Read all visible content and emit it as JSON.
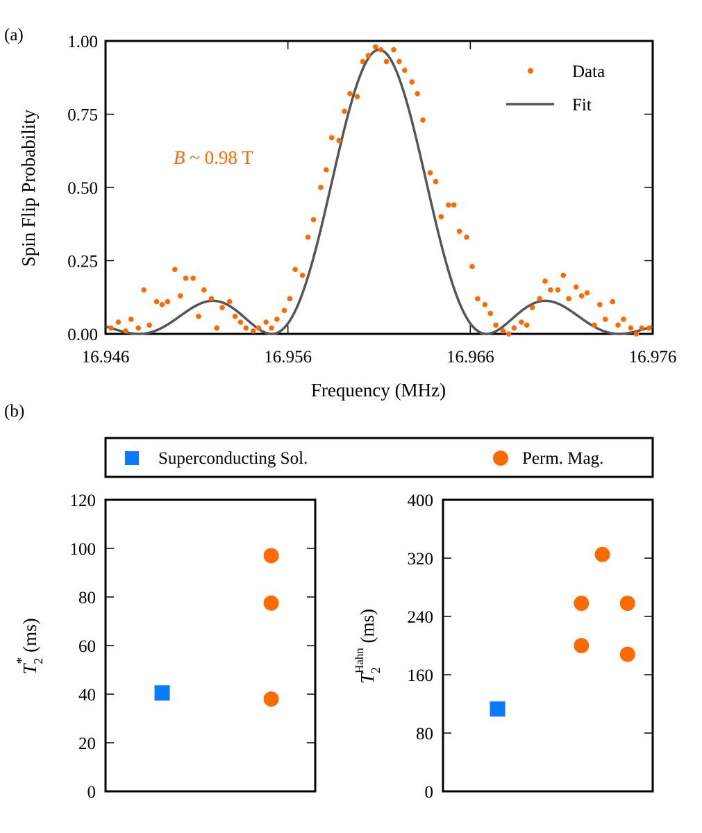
{
  "panels": {
    "a": "(a)",
    "b": "(b)"
  },
  "colors": {
    "data": "#FF6A00",
    "fit": "#555555",
    "solenoid": "#0A7BFF",
    "magnet": "#FF6A00",
    "axis": "#000000"
  },
  "chart_data": [
    {
      "type": "scatter+line",
      "panel": "(a)",
      "title": "",
      "xlabel": "Frequency (MHz)",
      "ylabel": "Spin Flip Probability",
      "xlim": [
        16.946,
        16.976
      ],
      "ylim": [
        0.0,
        1.0
      ],
      "xticks": [
        16.946,
        16.956,
        16.966,
        16.976
      ],
      "xtick_labels": [
        "16.946",
        "16.956",
        "16.966",
        "16.976"
      ],
      "yticks": [
        0.0,
        0.25,
        0.5,
        0.75,
        1.0
      ],
      "ytick_labels": [
        "0.00",
        "0.25",
        "0.50",
        "0.75",
        "1.00"
      ],
      "annotation": {
        "italic": "B",
        "rest": " ~ 0.98 T"
      },
      "legend": {
        "data": "Data",
        "fit": "Fit"
      },
      "fit": {
        "center": 16.961,
        "amplitude": 0.97,
        "rabi_f": 0.0034
      },
      "series": [
        {
          "name": "Data",
          "kind": "points",
          "x": [
            16.9463,
            16.9467,
            16.9471,
            16.9474,
            16.9478,
            16.9481,
            16.9484,
            16.9488,
            16.9491,
            16.9494,
            16.9498,
            16.9501,
            16.9504,
            16.9508,
            16.9511,
            16.9514,
            16.9518,
            16.9521,
            16.9524,
            16.9528,
            16.9531,
            16.9534,
            16.9537,
            16.9541,
            16.9544,
            16.9548,
            16.9551,
            16.9554,
            16.9558,
            16.9561,
            16.9564,
            16.9568,
            16.9571,
            16.9574,
            16.9578,
            16.9581,
            16.9584,
            16.9588,
            16.9591,
            16.9594,
            16.9598,
            16.9601,
            16.9604,
            16.9608,
            16.9611,
            16.9614,
            16.9618,
            16.9621,
            16.9624,
            16.9628,
            16.9631,
            16.9634,
            16.9638,
            16.9641,
            16.9644,
            16.9648,
            16.9651,
            16.9654,
            16.9658,
            16.9661,
            16.9664,
            16.9668,
            16.9671,
            16.9674,
            16.9678,
            16.9681,
            16.9684,
            16.9688,
            16.9691,
            16.9694,
            16.9698,
            16.9701,
            16.9704,
            16.9708,
            16.9711,
            16.9714,
            16.9718,
            16.9721,
            16.9724,
            16.9728,
            16.9731,
            16.9734,
            16.9738,
            16.9741,
            16.9744,
            16.9748,
            16.9751,
            16.9754,
            16.9758
          ],
          "y": [
            0.02,
            0.04,
            0.01,
            0.05,
            0.02,
            0.15,
            0.03,
            0.11,
            0.1,
            0.11,
            0.22,
            0.13,
            0.19,
            0.19,
            0.06,
            0.15,
            0.12,
            0.02,
            0.09,
            0.11,
            0.06,
            0.04,
            0.02,
            0.01,
            0.02,
            0.04,
            0.02,
            0.05,
            0.08,
            0.12,
            0.22,
            0.2,
            0.33,
            0.39,
            0.5,
            0.56,
            0.67,
            0.66,
            0.76,
            0.82,
            0.81,
            0.93,
            0.95,
            0.98,
            0.97,
            0.93,
            0.97,
            0.93,
            0.9,
            0.86,
            0.82,
            0.73,
            0.55,
            0.52,
            0.4,
            0.44,
            0.44,
            0.35,
            0.33,
            0.23,
            0.12,
            0.1,
            0.07,
            0.03,
            0.01,
            0.0,
            0.02,
            0.04,
            0.03,
            0.09,
            0.12,
            0.18,
            0.15,
            0.15,
            0.2,
            0.12,
            0.16,
            0.13,
            0.14,
            0.03,
            0.1,
            0.05,
            0.11,
            0.03,
            0.05,
            0.02,
            0.0,
            0.02,
            0.02
          ]
        },
        {
          "name": "Fit",
          "kind": "line",
          "function": "rabi-sinc-squared"
        }
      ]
    },
    {
      "type": "legend",
      "panel": "(b)",
      "legend": {
        "solenoid": "Superconducting Sol.",
        "magnet": "Perm. Mag."
      }
    },
    {
      "type": "scatter",
      "panel": "(b)-left",
      "ylabel": {
        "sym": "T",
        "sub": "2",
        "sup": "*",
        "unit": " (ms)"
      },
      "ylim": [
        0,
        120
      ],
      "yticks": [
        0,
        20,
        40,
        60,
        80,
        100,
        120
      ],
      "ytick_labels": [
        "0",
        "20",
        "40",
        "60",
        "80",
        "100",
        "120"
      ],
      "xlim": [
        0,
        1
      ],
      "series": [
        {
          "name": "Superconducting Sol.",
          "marker": "square",
          "x": [
            0.27
          ],
          "y": [
            40.5
          ]
        },
        {
          "name": "Perm. Mag.",
          "marker": "circle",
          "x": [
            0.79,
            0.79,
            0.79
          ],
          "y": [
            97,
            77.5,
            38
          ]
        }
      ]
    },
    {
      "type": "scatter",
      "panel": "(b)-right",
      "ylabel": {
        "sym": "T",
        "sub": "2",
        "sup": "Hahn",
        "unit": " (ms)"
      },
      "ylim": [
        0,
        400
      ],
      "yticks": [
        0,
        80,
        160,
        240,
        320,
        400
      ],
      "ytick_labels": [
        "0",
        "80",
        "160",
        "240",
        "320",
        "400"
      ],
      "xlim": [
        0,
        1
      ],
      "series": [
        {
          "name": "Superconducting Sol.",
          "marker": "square",
          "x": [
            0.26
          ],
          "y": [
            113
          ]
        },
        {
          "name": "Perm. Mag.",
          "marker": "circle",
          "x": [
            0.66,
            0.66,
            0.76,
            0.88,
            0.88
          ],
          "y": [
            258,
            200,
            325,
            258,
            188
          ]
        }
      ]
    }
  ]
}
